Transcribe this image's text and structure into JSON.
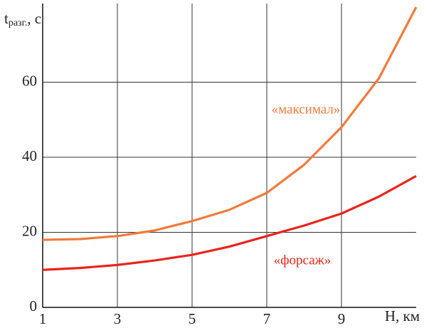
{
  "chart_data": {
    "type": "line",
    "ylabel": {
      "main": "t",
      "sub": "разг.",
      "unit": ", с"
    },
    "xlabel": "H, км",
    "x": [
      1,
      2,
      3,
      4,
      5,
      6,
      7,
      8,
      9,
      10,
      11
    ],
    "series": [
      {
        "name": "«максимал»",
        "color": "#f07a3c",
        "values": [
          18,
          18.2,
          19,
          20.5,
          23,
          26,
          30.5,
          38,
          48,
          61,
          80
        ]
      },
      {
        "name": "«форсаж»",
        "color": "#e8241c",
        "values": [
          10,
          10.5,
          11.3,
          12.5,
          14,
          16.2,
          19,
          21.8,
          25,
          29.5,
          35
        ]
      }
    ],
    "xlim": [
      1,
      11
    ],
    "xticks": [
      1,
      3,
      5,
      7,
      9
    ],
    "ylim": [
      0,
      80
    ],
    "yticks": [
      0,
      20,
      40,
      60
    ],
    "grid": true
  }
}
